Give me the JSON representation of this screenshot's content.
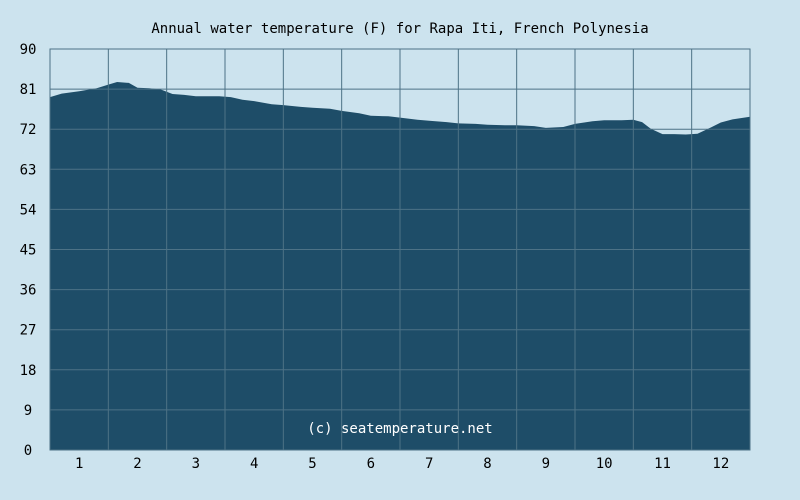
{
  "chart_data": {
    "type": "area",
    "title": "Annual water temperature (F) for Rapa Iti, French Polynesia",
    "xlabel": "",
    "ylabel": "",
    "x_tick_labels": [
      "1",
      "2",
      "3",
      "4",
      "5",
      "6",
      "7",
      "8",
      "9",
      "10",
      "11",
      "12"
    ],
    "y_ticks": [
      0,
      9,
      18,
      27,
      36,
      45,
      54,
      63,
      72,
      81,
      90
    ],
    "ylim": [
      0,
      90
    ],
    "xlim": [
      0.5,
      12.5
    ],
    "grid": true,
    "annotation": "(c) seatemperature.net",
    "series": [
      {
        "x": [
          0.5,
          0.7,
          1.0,
          1.3,
          1.5,
          1.65,
          1.85,
          2.0,
          2.2,
          2.4,
          2.6,
          2.8,
          3.0,
          3.2,
          3.4,
          3.6,
          3.8,
          4.0,
          4.3,
          4.5,
          4.8,
          5.0,
          5.3,
          5.5,
          5.8,
          6.0,
          6.3,
          6.5,
          6.8,
          7.0,
          7.3,
          7.5,
          7.8,
          8.0,
          8.3,
          8.5,
          8.8,
          9.0,
          9.3,
          9.5,
          9.8,
          10.0,
          10.3,
          10.5,
          10.65,
          10.8,
          11.0,
          11.2,
          11.4,
          11.6,
          11.8,
          12.0,
          12.2,
          12.5
        ],
        "values": [
          79.2,
          80.0,
          80.5,
          81.2,
          82.0,
          82.6,
          82.4,
          81.3,
          81.2,
          80.9,
          79.9,
          79.7,
          79.4,
          79.4,
          79.4,
          79.2,
          78.6,
          78.3,
          77.6,
          77.4,
          77.0,
          76.8,
          76.6,
          76.1,
          75.6,
          75.0,
          74.9,
          74.6,
          74.1,
          73.9,
          73.6,
          73.3,
          73.2,
          73.0,
          72.9,
          72.9,
          72.7,
          72.3,
          72.5,
          73.2,
          73.8,
          74.0,
          74.0,
          74.1,
          73.6,
          72.1,
          70.9,
          70.9,
          70.8,
          71.0,
          72.2,
          73.5,
          74.2,
          74.8
        ]
      }
    ]
  },
  "colors": {
    "background": "#cce3ee",
    "plot_background": "#cce3ee",
    "area_fill": "#1e4d68",
    "grid": "#4d7286",
    "axis_text": "#000000",
    "credit_text": "#ffffff"
  }
}
